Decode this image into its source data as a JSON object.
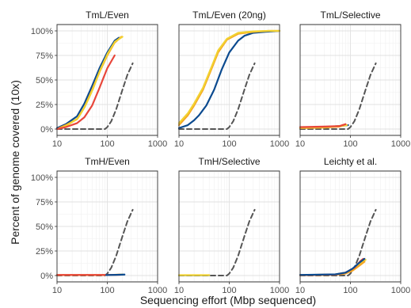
{
  "chart_data": {
    "type": "line",
    "facet_layout": "2 rows x 3 columns",
    "xlabel": "Sequencing effort (Mbp sequenced)",
    "ylabel": "Percent of genome covered (10x)",
    "x_scale": "log10",
    "xlim": [
      10,
      1000
    ],
    "ylim": [
      0,
      100
    ],
    "x_ticks": [
      10,
      100,
      1000
    ],
    "x_tick_labels": [
      "10",
      "100",
      "1000"
    ],
    "y_ticks": [
      0,
      25,
      50,
      75,
      100
    ],
    "y_tick_labels": [
      "0%",
      "25%",
      "50%",
      "75%",
      "100%"
    ],
    "grid": true,
    "legend": "none",
    "colors": {
      "blue": "#0b4a8f",
      "orange": "#f5a623",
      "yellow": "#f2d230",
      "red": "#e8463a",
      "reference": "#555555"
    },
    "reference_line": {
      "style": "dashed",
      "color": "#555555",
      "points": [
        [
          10,
          0
        ],
        [
          90,
          0
        ],
        [
          100,
          2
        ],
        [
          120,
          8
        ],
        [
          150,
          20
        ],
        [
          200,
          40
        ],
        [
          250,
          55
        ],
        [
          320,
          67
        ]
      ]
    },
    "panels": [
      {
        "title": "TmL/Even",
        "series": [
          {
            "color": "#0b4a8f",
            "points": [
              [
                10,
                1
              ],
              [
                15,
                5
              ],
              [
                25,
                13
              ],
              [
                35,
                26
              ],
              [
                50,
                44
              ],
              [
                70,
                62
              ],
              [
                100,
                78
              ],
              [
                140,
                90
              ],
              [
                170,
                93
              ]
            ]
          },
          {
            "color": "#f5a623",
            "points": [
              [
                11,
                1
              ],
              [
                15,
                4
              ],
              [
                25,
                10
              ],
              [
                35,
                22
              ],
              [
                50,
                40
              ],
              [
                70,
                58
              ],
              [
                100,
                75
              ],
              [
                140,
                88
              ],
              [
                190,
                94
              ]
            ]
          },
          {
            "color": "#f2d230",
            "points": [
              [
                12,
                1
              ],
              [
                16,
                4
              ],
              [
                26,
                11
              ],
              [
                36,
                23
              ],
              [
                52,
                41
              ],
              [
                72,
                60
              ],
              [
                102,
                77
              ],
              [
                142,
                89
              ],
              [
                200,
                94
              ]
            ]
          },
          {
            "color": "#e8463a",
            "points": [
              [
                10,
                0
              ],
              [
                15,
                2
              ],
              [
                25,
                6
              ],
              [
                35,
                12
              ],
              [
                50,
                24
              ],
              [
                70,
                42
              ],
              [
                100,
                62
              ],
              [
                140,
                75
              ]
            ]
          }
        ]
      },
      {
        "title": "TmL/Even (20ng)",
        "series": [
          {
            "color": "#0b4a8f",
            "points": [
              [
                10,
                1
              ],
              [
                15,
                4
              ],
              [
                20,
                9
              ],
              [
                25,
                14
              ],
              [
                35,
                24
              ],
              [
                50,
                40
              ],
              [
                70,
                60
              ],
              [
                100,
                78
              ],
              [
                150,
                90
              ],
              [
                200,
                95
              ],
              [
                300,
                98
              ],
              [
                500,
                99
              ],
              [
                1000,
                100
              ]
            ]
          },
          {
            "color": "#f5a623",
            "points": [
              [
                10,
                4
              ],
              [
                15,
                14
              ],
              [
                20,
                24
              ],
              [
                30,
                40
              ],
              [
                45,
                62
              ],
              [
                60,
                78
              ],
              [
                90,
                91
              ],
              [
                150,
                97
              ],
              [
                300,
                99
              ],
              [
                600,
                100
              ],
              [
                1000,
                100
              ]
            ]
          },
          {
            "color": "#f2d230",
            "points": [
              [
                10,
                6
              ],
              [
                15,
                16
              ],
              [
                20,
                26
              ],
              [
                30,
                42
              ],
              [
                45,
                64
              ],
              [
                60,
                80
              ],
              [
                90,
                92
              ],
              [
                150,
                98
              ],
              [
                300,
                99.5
              ],
              [
                600,
                100
              ],
              [
                1000,
                100
              ]
            ]
          }
        ]
      },
      {
        "title": "TmL/Selective",
        "series": [
          {
            "color": "#0b4a8f",
            "points": [
              [
                10,
                1
              ],
              [
                30,
                2
              ],
              [
                60,
                3
              ],
              [
                90,
                4
              ]
            ]
          },
          {
            "color": "#f5a623",
            "points": [
              [
                10,
                1
              ],
              [
                30,
                1.5
              ],
              [
                60,
                2.5
              ],
              [
                80,
                4
              ]
            ]
          },
          {
            "color": "#f2d230",
            "points": [
              [
                10,
                1.5
              ],
              [
                30,
                2
              ],
              [
                60,
                3
              ],
              [
                85,
                4
              ]
            ]
          },
          {
            "color": "#e8463a",
            "points": [
              [
                10,
                2
              ],
              [
                30,
                2.5
              ],
              [
                60,
                3
              ],
              [
                80,
                5
              ]
            ]
          }
        ]
      },
      {
        "title": "TmH/Even",
        "series": [
          {
            "color": "#f2d230",
            "points": [
              [
                10,
                0.5
              ],
              [
                100,
                0.5
              ],
              [
                200,
                1
              ]
            ]
          },
          {
            "color": "#e8463a",
            "points": [
              [
                10,
                0.6
              ],
              [
                100,
                0.6
              ],
              [
                180,
                0.8
              ]
            ]
          },
          {
            "color": "#0b4a8f",
            "points": [
              [
                95,
                0.5
              ],
              [
                150,
                0.7
              ],
              [
                220,
                1
              ]
            ]
          }
        ]
      },
      {
        "title": "TmH/Selective",
        "series": [
          {
            "color": "#0b4a8f",
            "points": [
              [
                10,
                0.3
              ],
              [
                40,
                0.3
              ]
            ]
          },
          {
            "color": "#f2d230",
            "points": [
              [
                10,
                0.4
              ],
              [
                40,
                0.4
              ]
            ]
          }
        ]
      },
      {
        "title": "Leichty et al.",
        "series": [
          {
            "color": "#f2d230",
            "points": [
              [
                10,
                0.5
              ],
              [
                50,
                1
              ],
              [
                80,
                3
              ],
              [
                110,
                6
              ],
              [
                150,
                12
              ],
              [
                200,
                16
              ]
            ]
          },
          {
            "color": "#f5a623",
            "points": [
              [
                10,
                0.3
              ],
              [
                50,
                0.8
              ],
              [
                80,
                2
              ],
              [
                110,
                5
              ],
              [
                150,
                10
              ],
              [
                190,
                14
              ]
            ]
          },
          {
            "color": "#e8463a",
            "points": [
              [
                10,
                0.5
              ],
              [
                50,
                1
              ],
              [
                80,
                3
              ],
              [
                120,
                8
              ],
              [
                160,
                15
              ],
              [
                180,
                17
              ]
            ]
          },
          {
            "color": "#0b4a8f",
            "points": [
              [
                10,
                0.6
              ],
              [
                50,
                1.2
              ],
              [
                80,
                3
              ],
              [
                110,
                7
              ],
              [
                150,
                13
              ],
              [
                190,
                17
              ]
            ]
          }
        ]
      }
    ]
  }
}
